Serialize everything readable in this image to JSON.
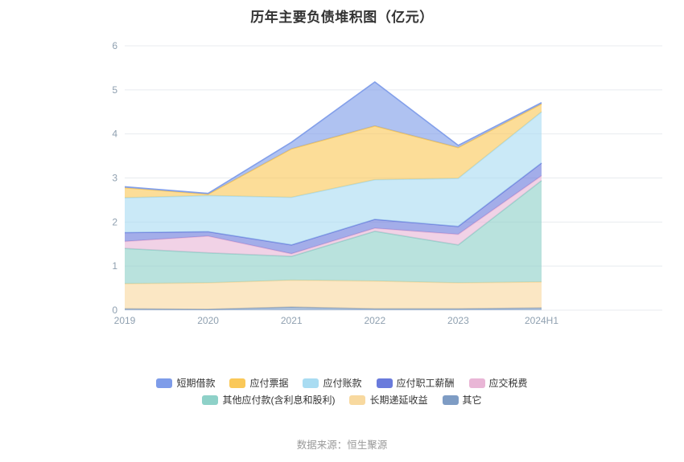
{
  "chart_data": {
    "type": "area",
    "stacked": true,
    "title": "历年主要负债堆积图（亿元）",
    "source_note": "数据来源：恒生聚源",
    "categories": [
      "2019",
      "2020",
      "2021",
      "2022",
      "2023",
      "2024H1"
    ],
    "ylim": [
      0,
      6
    ],
    "y_ticks": [
      0,
      1,
      2,
      3,
      4,
      5,
      6
    ],
    "grid": true,
    "legend_position": "bottom",
    "series": [
      {
        "name": "其它",
        "color": "#7E9CC4",
        "values": [
          0.03,
          0.02,
          0.07,
          0.03,
          0.03,
          0.05
        ]
      },
      {
        "name": "长期递延收益",
        "color": "#F8D99F",
        "values": [
          0.57,
          0.6,
          0.61,
          0.63,
          0.59,
          0.59
        ]
      },
      {
        "name": "其他应付款(含利息和股利)",
        "color": "#8ED1C8",
        "values": [
          0.8,
          0.68,
          0.54,
          1.13,
          0.86,
          2.3
        ]
      },
      {
        "name": "应交税费",
        "color": "#E9B6D6",
        "values": [
          0.16,
          0.38,
          0.06,
          0.07,
          0.24,
          0.11
        ]
      },
      {
        "name": "应付职工薪酬",
        "color": "#6A7BDC",
        "values": [
          0.2,
          0.1,
          0.2,
          0.2,
          0.18,
          0.29
        ]
      },
      {
        "name": "应付账款",
        "color": "#A9DCF2",
        "values": [
          0.79,
          0.82,
          1.08,
          0.9,
          1.09,
          1.16
        ]
      },
      {
        "name": "应付票据",
        "color": "#FAC858",
        "values": [
          0.23,
          0.03,
          1.1,
          1.22,
          0.7,
          0.18
        ]
      },
      {
        "name": "短期借款",
        "color": "#7E9CE9",
        "values": [
          0.02,
          0.02,
          0.15,
          1.0,
          0.05,
          0.03
        ]
      }
    ],
    "legend_order": [
      "短期借款",
      "应付票据",
      "应付账款",
      "应付职工薪酬",
      "应交税费",
      "其他应付款(含利息和股利)",
      "长期递延收益",
      "其它"
    ],
    "legend_row_break": 5,
    "axis_colors": {
      "tick_label": "#8fa0b0",
      "gridline": "#e8ebef"
    }
  }
}
